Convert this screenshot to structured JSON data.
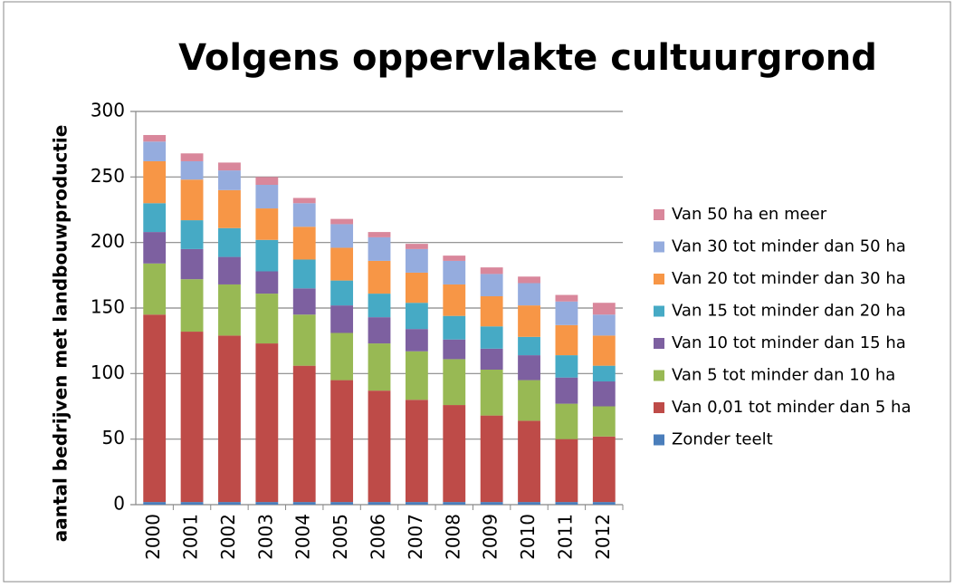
{
  "chart_data": {
    "type": "stacked_bar",
    "title": "Volgens oppervlakte cultuurgrond",
    "y_label": "aantal bedrijven met landbouwproductie",
    "categories": [
      "2000",
      "2001",
      "2002",
      "2003",
      "2004",
      "2005",
      "2006",
      "2007",
      "2008",
      "2009",
      "2010",
      "2011",
      "2012"
    ],
    "series": [
      {
        "name": "Zonder teelt",
        "color": "#4a7ebb",
        "values": [
          2,
          2,
          2,
          2,
          2,
          2,
          2,
          2,
          2,
          2,
          2,
          2,
          2
        ]
      },
      {
        "name": "Van 0,01 tot minder dan 5 ha",
        "color": "#be4b48",
        "values": [
          143,
          130,
          127,
          121,
          104,
          93,
          85,
          78,
          74,
          66,
          62,
          48,
          50
        ]
      },
      {
        "name": "Van 5 tot minder dan 10 ha",
        "color": "#98b954",
        "values": [
          39,
          40,
          39,
          38,
          39,
          36,
          36,
          37,
          35,
          35,
          31,
          27,
          23
        ]
      },
      {
        "name": "Van 10 tot minder dan 15 ha",
        "color": "#7d60a0",
        "values": [
          24,
          23,
          21,
          17,
          20,
          21,
          20,
          17,
          15,
          16,
          19,
          20,
          19
        ]
      },
      {
        "name": "Van 15 tot minder dan 20 ha",
        "color": "#46aac5",
        "values": [
          22,
          22,
          22,
          24,
          22,
          19,
          18,
          20,
          18,
          17,
          14,
          17,
          12
        ]
      },
      {
        "name": "Van 20 tot minder dan 30 ha",
        "color": "#f79646",
        "values": [
          32,
          31,
          29,
          24,
          25,
          25,
          25,
          23,
          24,
          23,
          24,
          23,
          23
        ]
      },
      {
        "name": "Van 30 tot minder dan 50 ha",
        "color": "#95acde",
        "values": [
          15,
          14,
          15,
          18,
          18,
          18,
          18,
          18,
          18,
          17,
          17,
          18,
          16
        ]
      },
      {
        "name": "Van 50 ha en meer",
        "color": "#d9879b",
        "values": [
          5,
          6,
          6,
          6,
          4,
          4,
          4,
          4,
          4,
          5,
          5,
          5,
          9
        ]
      }
    ],
    "ylim": [
      0,
      300
    ],
    "yticks": [
      0,
      50,
      100,
      150,
      200,
      250,
      300
    ],
    "grid": true,
    "legend": "right"
  }
}
